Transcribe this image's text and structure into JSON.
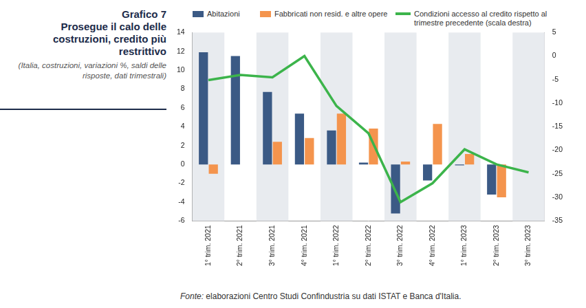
{
  "chart_data": {
    "type": "bar",
    "title": "Grafico 7",
    "subtitle": "Prosegue il calo delle costruzioni, credito più restrittivo",
    "annotations": [
      "(Italia, costruzioni, variazioni %, saldi delle risposte, dati trimestrali)",
      "Fonte: elaborazioni Centro Studi Confindustria su dati ISTAT e Banca d'Italia."
    ],
    "categories": [
      "1° trim. 2021",
      "2° trim. 2021",
      "3° trim. 2021",
      "4° trim. 2021",
      "1° trim. 2022",
      "2° trim. 2022",
      "3° trim. 2022",
      "4° trim. 2022",
      "1° trim. 2023",
      "2° trim. 2023",
      "3° trim. 2023"
    ],
    "series": [
      {
        "name": "Abitazioni",
        "type": "bar",
        "color": "#3b5a85",
        "values": [
          11.9,
          11.5,
          7.7,
          5.4,
          3.6,
          0.2,
          -5.2,
          -1.7,
          -0.1,
          -3.2,
          null
        ]
      },
      {
        "name": "Fabbricati non resid. e altre opere",
        "type": "bar",
        "color": "#f4944d",
        "values": [
          -1.0,
          0.0,
          2.4,
          2.8,
          5.4,
          3.8,
          0.3,
          4.3,
          1.1,
          -3.5,
          null
        ]
      },
      {
        "name": "Condizioni accesso al credito rispetto al trimestre precedente (scala destra)",
        "type": "line",
        "color": "#3cb44b",
        "axis": "y2",
        "values": [
          -5.1,
          -4.0,
          -4.5,
          0.0,
          -10.6,
          -16.4,
          -31.0,
          -27.0,
          -19.8,
          -23.0,
          -24.7
        ]
      }
    ],
    "ylim": [
      -6,
      14
    ],
    "yticks": [
      -6,
      -4,
      -2,
      0,
      2,
      4,
      6,
      8,
      10,
      12,
      14
    ],
    "y2lim": [
      -35,
      5
    ],
    "y2ticks": [
      -35,
      -30,
      -25,
      -20,
      -15,
      -10,
      -5,
      0,
      5
    ],
    "grid": false,
    "legend": "top"
  }
}
